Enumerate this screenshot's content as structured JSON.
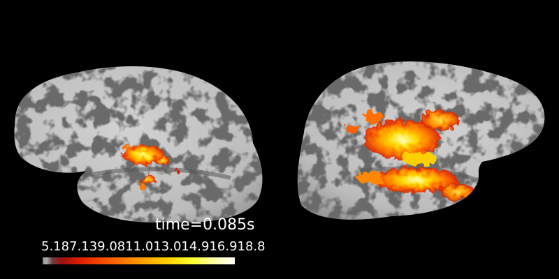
{
  "time_label": "time=0.085s",
  "colorbar": {
    "tick_text": "5.187.139.0811.013.014.916.918.8",
    "colors": [
      "#8a8a8a",
      "#a01010",
      "#e02000",
      "#ff9a00",
      "#ffff30",
      "#ffffff"
    ]
  },
  "scene": {
    "background": "#000000",
    "surface_light": "#c4c4c4",
    "surface_dark": "#6a6a6a",
    "views": [
      "left-hemisphere-lateral",
      "right-hemisphere-lateral"
    ]
  }
}
